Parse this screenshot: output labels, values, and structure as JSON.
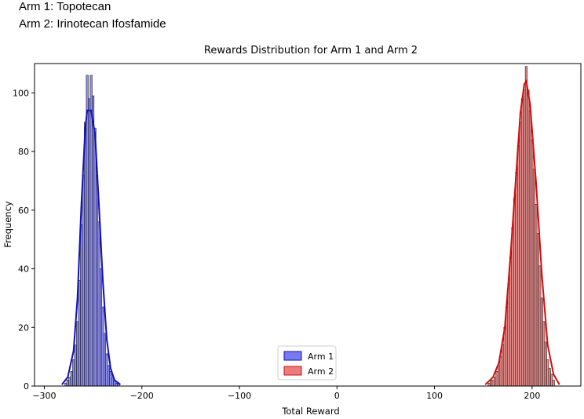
{
  "captions": {
    "arm1": "Arm 1: Topotecan",
    "arm2": "Arm 2: Irinotecan Ifosfamide"
  },
  "chart_data": {
    "type": "histogram",
    "title": "Rewards Distribution for Arm 1 and Arm 2",
    "xlabel": "Total Reward",
    "ylabel": "Frequency",
    "xlim": [
      -310,
      250
    ],
    "ylim": [
      0,
      110
    ],
    "xticks": [
      -300,
      -200,
      -100,
      0,
      100,
      200
    ],
    "yticks": [
      0,
      20,
      40,
      60,
      80,
      100
    ],
    "legend": {
      "position": "bottom-center"
    },
    "series": [
      {
        "name": "Arm 1",
        "color": "#2b2bd6",
        "fill": "#7a7af0",
        "kde_color": "#1010c0",
        "bins": [
          [
            -278,
            1
          ],
          [
            -276,
            2
          ],
          [
            -274,
            3
          ],
          [
            -272,
            5
          ],
          [
            -270,
            9
          ],
          [
            -268,
            14
          ],
          [
            -266,
            22
          ],
          [
            -264,
            36
          ],
          [
            -262,
            55
          ],
          [
            -260,
            72
          ],
          [
            -258,
            90
          ],
          [
            -256,
            106
          ],
          [
            -254,
            98
          ],
          [
            -252,
            106
          ],
          [
            -250,
            99
          ],
          [
            -248,
            88
          ],
          [
            -246,
            72
          ],
          [
            -244,
            56
          ],
          [
            -242,
            40
          ],
          [
            -240,
            27
          ],
          [
            -238,
            18
          ],
          [
            -236,
            11
          ],
          [
            -234,
            7
          ],
          [
            -232,
            5
          ],
          [
            -230,
            3
          ],
          [
            -228,
            2
          ],
          [
            -226,
            1
          ],
          [
            -224,
            1
          ]
        ],
        "kde": [
          [
            -282,
            0.5
          ],
          [
            -276,
            3
          ],
          [
            -270,
            12
          ],
          [
            -266,
            30
          ],
          [
            -262,
            62
          ],
          [
            -258,
            88
          ],
          [
            -256,
            94
          ],
          [
            -252,
            94
          ],
          [
            -248,
            86
          ],
          [
            -244,
            62
          ],
          [
            -240,
            36
          ],
          [
            -236,
            16
          ],
          [
            -232,
            6
          ],
          [
            -228,
            2
          ],
          [
            -222,
            0.5
          ]
        ]
      },
      {
        "name": "Arm 2",
        "color": "#d03030",
        "fill": "#ec7b7b",
        "kde_color": "#cc1010",
        "bins": [
          [
            156,
            1
          ],
          [
            158,
            2
          ],
          [
            160,
            2
          ],
          [
            162,
            3
          ],
          [
            164,
            5
          ],
          [
            166,
            7
          ],
          [
            168,
            10
          ],
          [
            170,
            14
          ],
          [
            172,
            20
          ],
          [
            174,
            27
          ],
          [
            176,
            35
          ],
          [
            178,
            44
          ],
          [
            180,
            54
          ],
          [
            182,
            64
          ],
          [
            184,
            73
          ],
          [
            186,
            82
          ],
          [
            188,
            90
          ],
          [
            190,
            98
          ],
          [
            192,
            101
          ],
          [
            194,
            109
          ],
          [
            196,
            101
          ],
          [
            198,
            94
          ],
          [
            200,
            84
          ],
          [
            202,
            74
          ],
          [
            204,
            62
          ],
          [
            206,
            52
          ],
          [
            208,
            41
          ],
          [
            210,
            30
          ],
          [
            212,
            22
          ],
          [
            214,
            15
          ],
          [
            216,
            9
          ],
          [
            218,
            6
          ],
          [
            220,
            4
          ],
          [
            222,
            2
          ]
        ],
        "kde": [
          [
            152,
            0.5
          ],
          [
            160,
            3
          ],
          [
            166,
            8
          ],
          [
            172,
            20
          ],
          [
            178,
            45
          ],
          [
            184,
            74
          ],
          [
            188,
            93
          ],
          [
            192,
            103
          ],
          [
            194,
            104
          ],
          [
            198,
            96
          ],
          [
            204,
            70
          ],
          [
            210,
            38
          ],
          [
            216,
            14
          ],
          [
            222,
            4
          ],
          [
            228,
            0.5
          ]
        ]
      }
    ]
  }
}
